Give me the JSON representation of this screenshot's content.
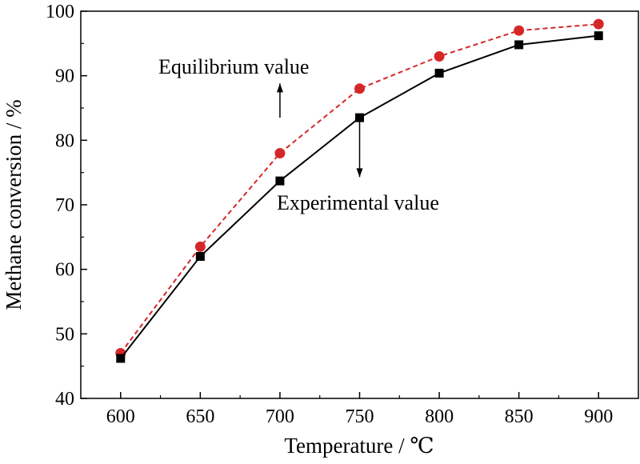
{
  "chart_data": {
    "type": "line",
    "x": [
      600,
      650,
      700,
      750,
      800,
      850,
      900
    ],
    "xlabel": "Temperature / ℃",
    "ylabel": "Methane conversion / %",
    "xlim": [
      575,
      925
    ],
    "ylim": [
      40,
      100
    ],
    "xticks": [
      "600",
      "650",
      "700",
      "750",
      "800",
      "850",
      "900"
    ],
    "yticks": [
      "40",
      "50",
      "60",
      "70",
      "80",
      "90",
      "100"
    ],
    "grid": false,
    "series": [
      {
        "values": [
          47.0,
          63.5,
          78.0,
          88.0,
          93.0,
          97.0,
          98.0
        ],
        "color": "#d62728",
        "line_style": "dashed",
        "marker": "circle"
      },
      {
        "values": [
          46.2,
          62.0,
          73.7,
          83.5,
          90.4,
          94.8,
          96.2
        ],
        "color": "#000000",
        "line_style": "solid",
        "marker": "square"
      }
    ],
    "annotations": [
      {
        "text": "Equilibrium value",
        "arrow_from": [
          700,
          83.5
        ],
        "arrow_to": [
          700,
          88.8
        ]
      },
      {
        "text": "Experimental value",
        "arrow_from": [
          750,
          83.0
        ],
        "arrow_to": [
          750,
          74.3
        ]
      }
    ]
  }
}
